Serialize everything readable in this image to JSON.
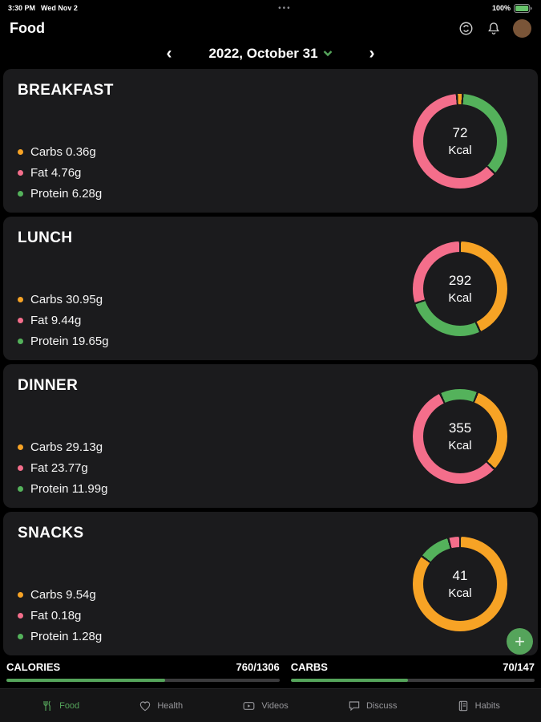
{
  "status_bar": {
    "time": "3:30 PM",
    "date": "Wed Nov 2",
    "menu_dots": "•••",
    "battery": "100%"
  },
  "header": {
    "title": "Food"
  },
  "date_nav": {
    "prev": "‹",
    "label": "2022, October 31",
    "next": "›"
  },
  "colors": {
    "carbs": "#F7A325",
    "fat": "#F46E8B",
    "protein": "#54B25B",
    "accent": "#55A45B",
    "card_bg": "#1B1B1D"
  },
  "meals": [
    {
      "name": "BREAKFAST",
      "kcal": "72",
      "kcal_unit": "Kcal",
      "legend": [
        {
          "key": "carbs",
          "label": "Carbs 0.36g"
        },
        {
          "key": "fat",
          "label": "Fat 4.76g"
        },
        {
          "key": "protein",
          "label": "Protein 6.28g"
        }
      ],
      "donut": {
        "start_deg": -4,
        "segments": [
          {
            "key": "carbs",
            "pct": 2
          },
          {
            "key": "protein",
            "pct": 36
          },
          {
            "key": "fat",
            "pct": 62
          }
        ]
      }
    },
    {
      "name": "LUNCH",
      "kcal": "292",
      "kcal_unit": "Kcal",
      "legend": [
        {
          "key": "carbs",
          "label": "Carbs 30.95g"
        },
        {
          "key": "fat",
          "label": "Fat 9.44g"
        },
        {
          "key": "protein",
          "label": "Protein 19.65g"
        }
      ],
      "donut": {
        "start_deg": 0,
        "segments": [
          {
            "key": "carbs",
            "pct": 43
          },
          {
            "key": "protein",
            "pct": 27
          },
          {
            "key": "fat",
            "pct": 30
          }
        ]
      }
    },
    {
      "name": "DINNER",
      "kcal": "355",
      "kcal_unit": "Kcal",
      "legend": [
        {
          "key": "carbs",
          "label": "Carbs 29.13g"
        },
        {
          "key": "fat",
          "label": "Fat 23.77g"
        },
        {
          "key": "protein",
          "label": "Protein 11.99g"
        }
      ],
      "donut": {
        "start_deg": -25,
        "segments": [
          {
            "key": "protein",
            "pct": 13
          },
          {
            "key": "carbs",
            "pct": 31
          },
          {
            "key": "fat",
            "pct": 56
          }
        ]
      }
    },
    {
      "name": "SNACKS",
      "kcal": "41",
      "kcal_unit": "Kcal",
      "legend": [
        {
          "key": "carbs",
          "label": "Carbs 9.54g"
        },
        {
          "key": "fat",
          "label": "Fat 0.18g"
        },
        {
          "key": "protein",
          "label": "Protein 1.28g"
        }
      ],
      "donut": {
        "start_deg": 0,
        "segments": [
          {
            "key": "carbs",
            "pct": 85
          },
          {
            "key": "protein",
            "pct": 11
          },
          {
            "key": "fat",
            "pct": 4
          }
        ]
      }
    }
  ],
  "summary": [
    {
      "label": "CALORIES",
      "value": "760/1306",
      "pct": 58
    },
    {
      "label": "CARBS",
      "value": "70/147",
      "pct": 48
    }
  ],
  "fab": {
    "label": "+"
  },
  "tab_bar": [
    {
      "label": "Food",
      "active": true
    },
    {
      "label": "Health",
      "active": false
    },
    {
      "label": "Videos",
      "active": false
    },
    {
      "label": "Discuss",
      "active": false
    },
    {
      "label": "Habits",
      "active": false
    }
  ]
}
